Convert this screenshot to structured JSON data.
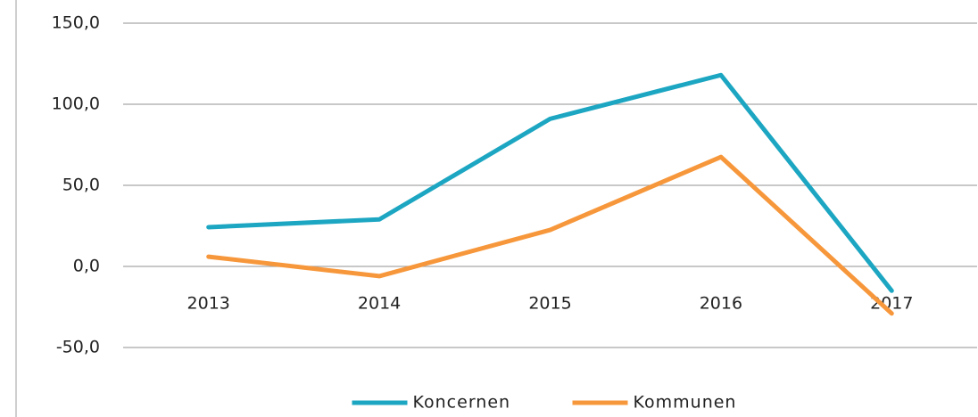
{
  "chart_data": {
    "type": "line",
    "categories": [
      "2013",
      "2014",
      "2015",
      "2016",
      "2017"
    ],
    "series": [
      {
        "name": "Koncernen",
        "color": "#1ca6c2",
        "values": [
          24.2,
          29,
          91,
          118,
          -15
        ]
      },
      {
        "name": "Kommunen",
        "color": "#f7973b",
        "values": [
          6,
          -6,
          22.5,
          67.5,
          -29
        ]
      }
    ],
    "ylim": [
      -50,
      150
    ],
    "yticks": [
      {
        "value": -50,
        "label": "-50,0"
      },
      {
        "value": 0,
        "label": "0,0"
      },
      {
        "value": 50,
        "label": "50,0"
      },
      {
        "value": 100,
        "label": "100,0"
      },
      {
        "value": 150,
        "label": "150,0"
      }
    ],
    "grid": true,
    "legend": "bottom"
  }
}
